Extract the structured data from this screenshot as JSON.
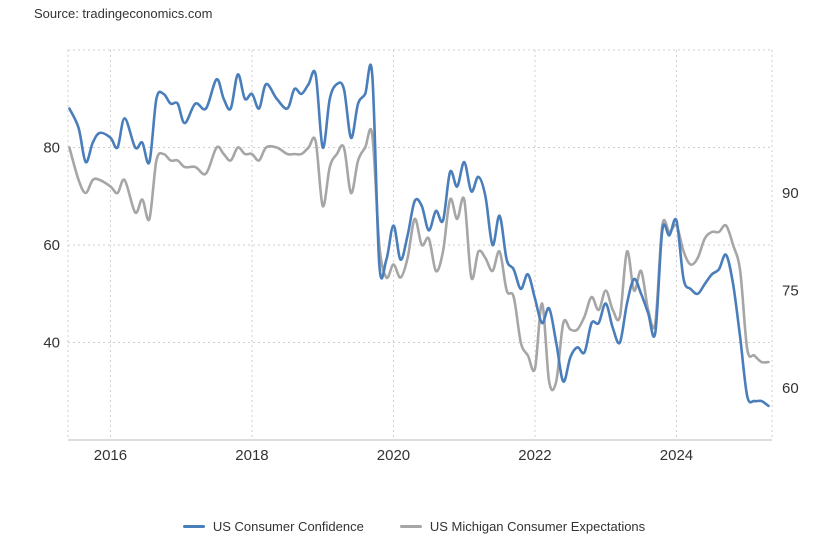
{
  "source": "Source: tradingeconomics.com",
  "chart_data": {
    "type": "line",
    "grid": true,
    "legend_position": "bottom",
    "x_ticks": [
      "2016",
      "2018",
      "2020",
      "2022",
      "2024"
    ],
    "xlim": [
      2015.4,
      2025.35
    ],
    "left_axis": {
      "ticks": [
        40,
        60,
        80
      ],
      "ylim": [
        20,
        100
      ]
    },
    "right_axis": {
      "ticks": [
        60,
        75,
        90
      ],
      "ylim": [
        52,
        112
      ]
    },
    "series": [
      {
        "name": "US Consumer Confidence",
        "color": "#4a7ebb",
        "axis": "left",
        "x": [
          2015.42,
          2015.55,
          2015.65,
          2015.75,
          2015.85,
          2016.0,
          2016.1,
          2016.2,
          2016.35,
          2016.45,
          2016.55,
          2016.65,
          2016.75,
          2016.85,
          2016.95,
          2017.05,
          2017.2,
          2017.35,
          2017.5,
          2017.6,
          2017.7,
          2017.8,
          2017.9,
          2018.0,
          2018.1,
          2018.2,
          2018.35,
          2018.5,
          2018.6,
          2018.7,
          2018.8,
          2018.9,
          2019.0,
          2019.1,
          2019.2,
          2019.3,
          2019.4,
          2019.5,
          2019.6,
          2019.7,
          2019.8,
          2019.9,
          2020.0,
          2020.1,
          2020.2,
          2020.3,
          2020.4,
          2020.5,
          2020.6,
          2020.7,
          2020.8,
          2020.9,
          2021.0,
          2021.1,
          2021.2,
          2021.3,
          2021.4,
          2021.5,
          2021.6,
          2021.7,
          2021.8,
          2021.9,
          2022.0,
          2022.1,
          2022.2,
          2022.3,
          2022.4,
          2022.5,
          2022.6,
          2022.7,
          2022.8,
          2022.9,
          2023.0,
          2023.1,
          2023.2,
          2023.3,
          2023.4,
          2023.5,
          2023.6,
          2023.7,
          2023.8,
          2023.9,
          2024.0,
          2024.1,
          2024.2,
          2024.3,
          2024.4,
          2024.5,
          2024.6,
          2024.7,
          2024.8,
          2024.9,
          2025.0,
          2025.1,
          2025.2,
          2025.3
        ],
        "values": [
          88,
          84,
          77,
          81,
          83,
          82,
          80,
          86,
          80,
          81,
          77,
          90,
          91,
          89,
          89,
          85,
          89,
          88,
          94,
          90,
          88,
          95,
          90,
          91,
          88,
          93,
          90,
          88,
          92,
          91,
          93,
          95,
          80,
          90,
          93,
          92,
          82,
          89,
          91,
          95,
          56,
          57,
          64,
          57,
          62,
          69,
          68,
          63,
          67,
          65,
          75,
          72,
          77,
          71,
          74,
          70,
          60,
          66,
          57,
          55,
          51,
          54,
          49,
          44,
          47,
          40,
          32,
          37,
          39,
          38,
          44,
          44,
          48,
          43,
          40,
          48,
          53,
          50,
          46,
          42,
          63,
          62,
          65,
          53,
          51,
          50,
          52,
          54,
          55,
          58,
          52,
          41,
          29,
          28,
          28,
          27
        ],
        "note_values_read_off_left_axis": true
      },
      {
        "name": "US Michigan Consumer Expectations",
        "color": "#a6a6a6",
        "axis": "right",
        "x": [
          2015.42,
          2015.55,
          2015.65,
          2015.75,
          2015.85,
          2016.0,
          2016.1,
          2016.2,
          2016.35,
          2016.45,
          2016.55,
          2016.65,
          2016.75,
          2016.85,
          2016.95,
          2017.05,
          2017.2,
          2017.35,
          2017.5,
          2017.6,
          2017.7,
          2017.8,
          2017.9,
          2018.0,
          2018.1,
          2018.2,
          2018.35,
          2018.5,
          2018.6,
          2018.7,
          2018.8,
          2018.9,
          2019.0,
          2019.1,
          2019.2,
          2019.3,
          2019.4,
          2019.5,
          2019.6,
          2019.7,
          2019.8,
          2019.9,
          2020.0,
          2020.1,
          2020.2,
          2020.3,
          2020.4,
          2020.5,
          2020.6,
          2020.7,
          2020.8,
          2020.9,
          2021.0,
          2021.1,
          2021.2,
          2021.3,
          2021.4,
          2021.5,
          2021.6,
          2021.7,
          2021.8,
          2021.9,
          2022.0,
          2022.1,
          2022.2,
          2022.3,
          2022.4,
          2022.5,
          2022.6,
          2022.7,
          2022.8,
          2022.9,
          2023.0,
          2023.1,
          2023.2,
          2023.3,
          2023.4,
          2023.5,
          2023.6,
          2023.7,
          2023.8,
          2023.9,
          2024.0,
          2024.1,
          2024.2,
          2024.3,
          2024.4,
          2024.5,
          2024.6,
          2024.7,
          2024.8,
          2024.9,
          2025.0,
          2025.1,
          2025.2,
          2025.3
        ],
        "values": [
          97,
          92,
          90,
          92,
          92,
          91,
          90,
          92,
          87,
          89,
          86,
          95,
          96,
          95,
          95,
          94,
          94,
          93,
          97,
          96,
          95,
          97,
          96,
          96,
          95,
          97,
          97,
          96,
          96,
          96,
          97,
          98,
          88,
          94,
          96,
          97,
          90,
          95,
          97,
          99,
          82,
          77,
          79,
          77,
          80,
          86,
          82,
          83,
          78,
          81,
          89,
          86,
          89,
          77,
          81,
          80,
          78,
          81,
          75,
          74,
          67,
          65,
          63,
          73,
          61,
          61,
          70,
          69,
          69,
          71,
          74,
          72,
          75,
          72,
          71,
          81,
          75,
          78,
          72,
          70,
          85,
          84,
          85,
          81,
          79,
          80,
          83,
          84,
          84,
          85,
          82,
          78,
          66,
          65,
          64,
          64
        ],
        "note_values_read_off_right_axis": true
      }
    ]
  }
}
